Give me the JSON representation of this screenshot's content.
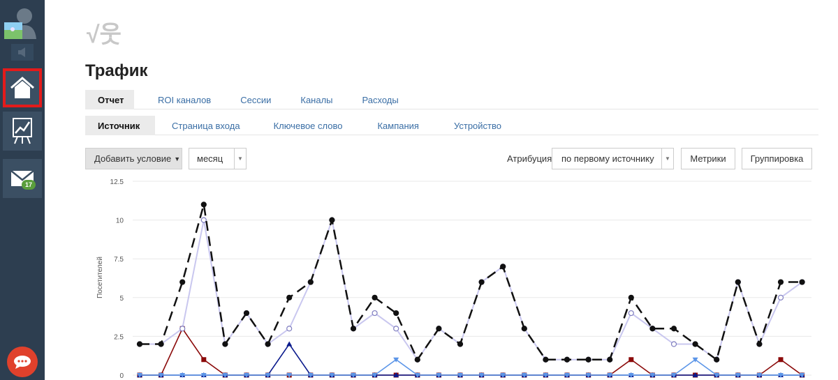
{
  "sidebar": {
    "mail_badge": "17",
    "items": [
      {
        "name": "home",
        "active": true
      },
      {
        "name": "analytics",
        "active": false
      },
      {
        "name": "mail",
        "active": false
      }
    ]
  },
  "logo": "√웃",
  "page_title": "Трафик",
  "tabs_primary": [
    "Отчет",
    "ROI каналов",
    "Сессии",
    "Каналы",
    "Расходы"
  ],
  "tabs_secondary": [
    "Источник",
    "Страница входа",
    "Ключевое слово",
    "Кампания",
    "Устройство"
  ],
  "toolbar": {
    "add_condition": "Добавить условие",
    "period": "месяц",
    "attribution_label": "Атрибуция",
    "attribution_value": "по первому источнику",
    "metrics": "Метрики",
    "grouping": "Группировка"
  },
  "colors": {
    "sidebar": "#2d3e50",
    "active_highlight": "#e31b1b",
    "link": "#3a6ea5",
    "total": "#111111",
    "lavender": "#c9c7ef",
    "darkred": "#8b0a0a",
    "navy": "#0a1a8c",
    "lightblue": "#5b95e8"
  },
  "chart_data": {
    "type": "line",
    "ylabel": "Посетителей",
    "ylim": [
      0,
      12.5
    ],
    "yticks": [
      "0",
      "2.5",
      "5",
      "7.5",
      "10",
      "12.5"
    ],
    "series": [
      {
        "values": [
          2,
          2,
          6,
          11,
          2,
          4,
          2,
          5,
          6,
          10,
          3,
          5,
          4,
          1,
          3,
          2,
          6,
          7,
          3,
          1,
          1,
          1,
          1,
          5,
          3,
          3,
          2,
          1,
          6,
          2,
          6,
          6
        ]
      },
      {
        "values": [
          2,
          2,
          3,
          10,
          2,
          4,
          2,
          3,
          6,
          10,
          3,
          4,
          3,
          1,
          3,
          2,
          6,
          7,
          3,
          1,
          1,
          1,
          1,
          4,
          3,
          2,
          2,
          1,
          6,
          2,
          5,
          6
        ]
      },
      {
        "values": [
          0,
          0,
          3,
          1,
          0,
          0,
          0,
          0,
          0,
          0,
          0,
          0,
          0,
          0,
          0,
          0,
          0,
          0,
          0,
          0,
          0,
          0,
          0,
          1,
          0,
          0,
          0,
          0,
          0,
          0,
          1,
          0
        ]
      },
      {
        "values": [
          0,
          0,
          0,
          0,
          0,
          0,
          0,
          2,
          0,
          0,
          0,
          0,
          0,
          0,
          0,
          0,
          0,
          0,
          0,
          0,
          0,
          0,
          0,
          0,
          0,
          0,
          0,
          0,
          0,
          0,
          0,
          0
        ]
      },
      {
        "values": [
          0,
          0,
          0,
          0,
          0,
          0,
          0,
          0,
          0,
          0,
          0,
          0,
          1,
          0,
          0,
          0,
          0,
          0,
          0,
          0,
          0,
          0,
          0,
          0,
          0,
          0,
          1,
          0,
          0,
          0,
          0,
          0
        ]
      }
    ]
  }
}
